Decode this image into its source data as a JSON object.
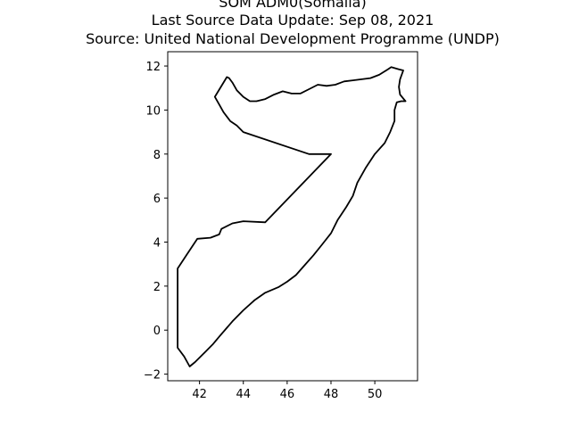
{
  "figure": {
    "title_lines": [
      "SOM ADM0(Somalia)",
      "Last Source Data Update: Sep 08, 2021",
      "Source: United National Development Programme (UNDP)"
    ]
  },
  "chart_data": {
    "type": "map",
    "x_ticks": [
      42,
      44,
      46,
      48,
      50
    ],
    "y_ticks": [
      -2,
      0,
      2,
      4,
      6,
      8,
      10,
      12
    ],
    "tick_labels": {
      "x": [
        "42",
        "44",
        "46",
        "48",
        "50"
      ],
      "y": [
        "−2",
        "0",
        "2",
        "4",
        "6",
        "8",
        "10",
        "12"
      ]
    },
    "xlim": [
      40.55,
      51.95
    ],
    "ylim": [
      -2.3,
      12.65
    ],
    "grid": false,
    "boundary": [
      [
        42.7,
        10.6
      ],
      [
        43.25,
        11.5
      ],
      [
        43.35,
        11.45
      ],
      [
        43.5,
        11.25
      ],
      [
        43.7,
        10.9
      ],
      [
        44.0,
        10.6
      ],
      [
        44.3,
        10.4
      ],
      [
        44.6,
        10.4
      ],
      [
        45.0,
        10.5
      ],
      [
        45.4,
        10.7
      ],
      [
        45.8,
        10.85
      ],
      [
        46.2,
        10.75
      ],
      [
        46.6,
        10.75
      ],
      [
        47.0,
        10.95
      ],
      [
        47.4,
        11.15
      ],
      [
        47.8,
        11.1
      ],
      [
        48.2,
        11.15
      ],
      [
        48.6,
        11.3
      ],
      [
        49.0,
        11.35
      ],
      [
        49.4,
        11.4
      ],
      [
        49.8,
        11.45
      ],
      [
        50.2,
        11.6
      ],
      [
        50.6,
        11.85
      ],
      [
        50.75,
        11.95
      ],
      [
        51.1,
        11.85
      ],
      [
        51.3,
        11.8
      ],
      [
        51.15,
        11.4
      ],
      [
        51.1,
        11.05
      ],
      [
        51.15,
        10.7
      ],
      [
        51.4,
        10.4
      ],
      [
        51.2,
        10.4
      ],
      [
        51.0,
        10.35
      ],
      [
        50.9,
        10.0
      ],
      [
        50.9,
        9.5
      ],
      [
        50.7,
        9.0
      ],
      [
        50.45,
        8.5
      ],
      [
        50.0,
        8.0
      ],
      [
        49.6,
        7.4
      ],
      [
        49.2,
        6.7
      ],
      [
        49.0,
        6.1
      ],
      [
        48.7,
        5.6
      ],
      [
        48.3,
        5.0
      ],
      [
        48.0,
        4.4
      ],
      [
        47.6,
        3.9
      ],
      [
        47.2,
        3.4
      ],
      [
        46.8,
        2.95
      ],
      [
        46.4,
        2.5
      ],
      [
        46.0,
        2.2
      ],
      [
        45.6,
        1.95
      ],
      [
        45.0,
        1.7
      ],
      [
        44.5,
        1.35
      ],
      [
        44.0,
        0.9
      ],
      [
        43.5,
        0.4
      ],
      [
        43.2,
        0.05
      ],
      [
        42.9,
        -0.3
      ],
      [
        42.6,
        -0.65
      ],
      [
        42.3,
        -0.95
      ],
      [
        42.0,
        -1.25
      ],
      [
        41.8,
        -1.45
      ],
      [
        41.55,
        -1.65
      ],
      [
        41.3,
        -1.2
      ],
      [
        41.0,
        -0.8
      ],
      [
        41.0,
        2.8
      ],
      [
        41.4,
        3.4
      ],
      [
        41.9,
        4.15
      ],
      [
        42.5,
        4.2
      ],
      [
        42.9,
        4.35
      ],
      [
        43.0,
        4.6
      ],
      [
        43.5,
        4.85
      ],
      [
        44.0,
        4.95
      ],
      [
        45.0,
        4.9
      ],
      [
        48.0,
        8.0
      ],
      [
        47.0,
        8.0
      ],
      [
        44.0,
        9.0
      ],
      [
        43.7,
        9.3
      ],
      [
        43.4,
        9.5
      ],
      [
        43.1,
        9.9
      ],
      [
        42.9,
        10.25
      ],
      [
        42.7,
        10.6
      ]
    ]
  }
}
